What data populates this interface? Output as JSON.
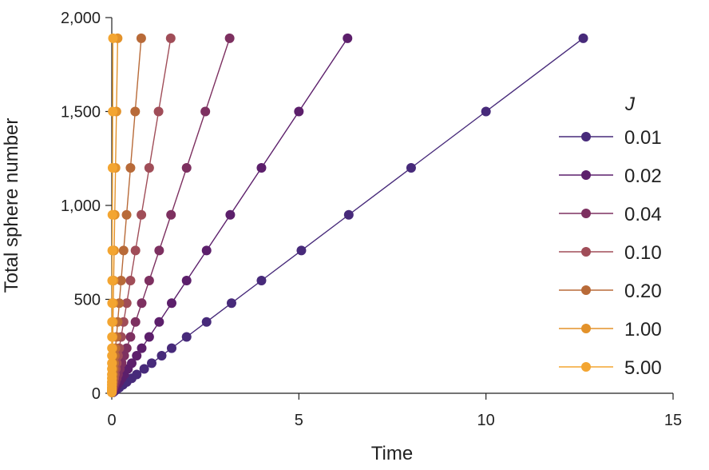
{
  "chart_data": {
    "type": "line",
    "title": "",
    "xlabel": "Time",
    "ylabel": "Total sphere number",
    "xlim": [
      0,
      15
    ],
    "ylim": [
      0,
      2000
    ],
    "xticks": [
      0,
      5,
      10,
      15
    ],
    "xtick_labels": [
      "0",
      "5",
      "10",
      "15"
    ],
    "yticks": [
      0,
      500,
      1000,
      1500,
      2000
    ],
    "ytick_labels": [
      "0",
      "500",
      "1,000",
      "1,500",
      "2,000"
    ],
    "grid": false,
    "legend_position": "right",
    "legend_title": "J",
    "y": [
      5,
      10,
      20,
      30,
      45,
      60,
      80,
      100,
      130,
      160,
      200,
      240,
      300,
      380,
      480,
      600,
      760,
      950,
      1200,
      1500,
      1890
    ],
    "series": [
      {
        "name": "0.01",
        "color": "#472a7a",
        "rate": 150
      },
      {
        "name": "0.02",
        "color": "#5c1f6b",
        "rate": 300
      },
      {
        "name": "0.04",
        "color": "#7d3060",
        "rate": 600
      },
      {
        "name": "0.10",
        "color": "#a04d58",
        "rate": 1200
      },
      {
        "name": "0.20",
        "color": "#b86a38",
        "rate": 2400
      },
      {
        "name": "1.00",
        "color": "#e3922a",
        "rate": 12000
      },
      {
        "name": "5.00",
        "color": "#f3a531",
        "rate": 60000
      }
    ]
  }
}
